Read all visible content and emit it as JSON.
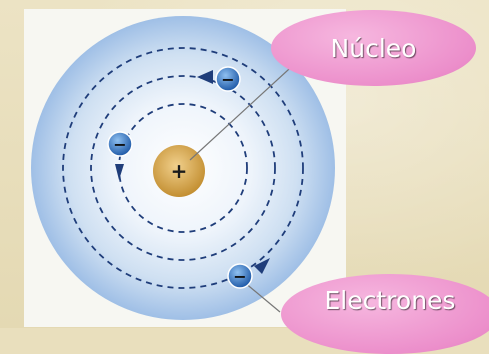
{
  "labels": {
    "nucleus_label": "Núcleo",
    "electrons_label": "Electrones",
    "nucleus_charge": "+",
    "electron_charge": "−"
  },
  "colors": {
    "atom_outer": "#a9c6e8",
    "atom_inner": "#dde9f5",
    "orbit": "#1f3d7a",
    "nucleus": "#d4a64a",
    "electron": "#2e6fc0",
    "callout": "#ec8fcb"
  }
}
